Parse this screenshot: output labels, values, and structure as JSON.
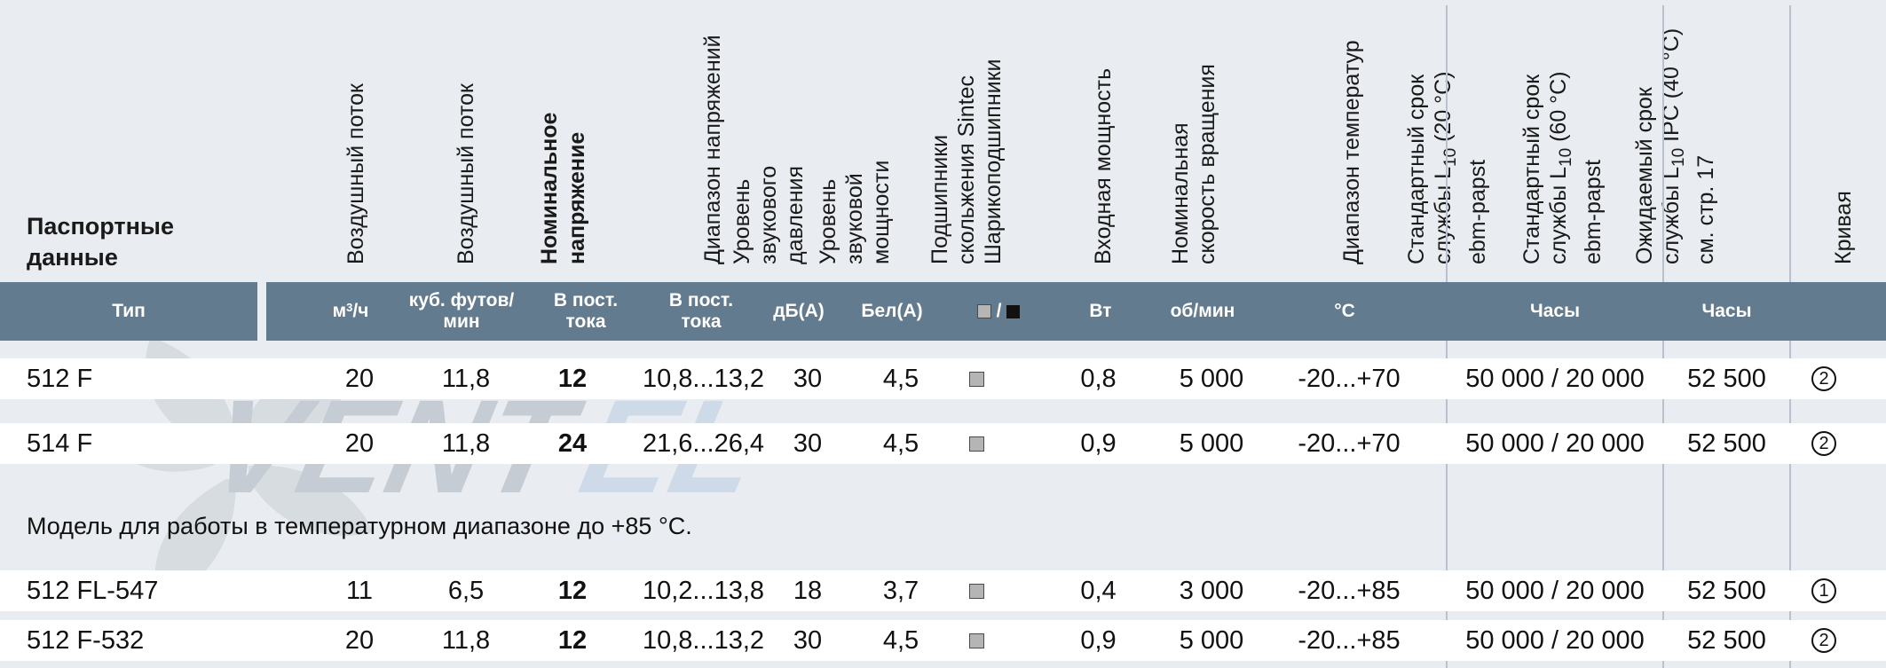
{
  "title": "Паспортные данные",
  "columns": {
    "airflow_m3": "Воздушный поток",
    "airflow_cfm": "Воздушный поток",
    "nominal_voltage": "Номинальное напряжение",
    "voltage_range": "Диапазон напряжений",
    "sound_pressure": "Уровень звукового давления",
    "sound_power": "Уровень звуковой мощности",
    "bearings": "Подшипники скольжения Sintec Шарикоподшипники",
    "input_power": "Входная мощность",
    "nominal_speed": "Номинальная скорость вращения",
    "temp_range": "Диапазон температур",
    "life20_a": "Стандартный срок",
    "life20_b_pre": "службы L",
    "life20_b_sub": "10",
    "life20_b_post": " (20 °C)",
    "life20_c": "ebm-papst",
    "life60_a": "Стандартный срок",
    "life60_b_pre": "службы L",
    "life60_b_sub": "10",
    "life60_b_post": " (60 °C)",
    "life60_c": "ebm-papst",
    "expected_a": "Ожидаемый срок",
    "expected_b_pre": "службы L",
    "expected_b_sub": "10",
    "expected_b_post": " IPC (40 °C)",
    "expected_c": "см. стр. 17",
    "curve": "Кривая"
  },
  "units": {
    "type": "Тип",
    "m3h_pre": "м",
    "m3h_sup": "3",
    "m3h_post": "/ч",
    "cfm": "куб. футов/ мин",
    "vdc1": "В пост. тока",
    "vdc2": "В пост. тока",
    "dba": "дБ(А)",
    "bela": "Бел(А)",
    "bearing_sep": "/",
    "watt": "Вт",
    "rpm": "об/мин",
    "celsius": "°C",
    "hours1": "Часы",
    "hours2": "Часы"
  },
  "rows": [
    {
      "type": "512 F",
      "m3h": "20",
      "cfm": "11,8",
      "vnom": "12",
      "vrange": "10,8...13,2",
      "db": "30",
      "bel": "4,5",
      "w": "0,8",
      "rpm": "5 000",
      "temp": "-20...+70",
      "life": "50 000 / 20 000",
      "ipc": "52 500",
      "curve": "2"
    },
    {
      "type": "514 F",
      "m3h": "20",
      "cfm": "11,8",
      "vnom": "24",
      "vrange": "21,6...26,4",
      "db": "30",
      "bel": "4,5",
      "w": "0,9",
      "rpm": "5 000",
      "temp": "-20...+70",
      "life": "50 000 / 20 000",
      "ipc": "52 500",
      "curve": "2"
    },
    {
      "type": "512 FL-547",
      "m3h": "11",
      "cfm": "6,5",
      "vnom": "12",
      "vrange": "10,2...13,8",
      "db": "18",
      "bel": "3,7",
      "w": "0,4",
      "rpm": "3 000",
      "temp": "-20...+85",
      "life": "50 000 / 20 000",
      "ipc": "52 500",
      "curve": "1"
    },
    {
      "type": "512 F-532",
      "m3h": "20",
      "cfm": "11,8",
      "vnom": "12",
      "vrange": "10,8...13,2",
      "db": "30",
      "bel": "4,5",
      "w": "0,9",
      "rpm": "5 000",
      "temp": "-20...+85",
      "life": "50 000 / 20 000",
      "ipc": "52 500",
      "curve": "2"
    }
  ],
  "note": "Модель для работы в температурном диапазоне до +85 °C.",
  "watermark": "VENTEL"
}
